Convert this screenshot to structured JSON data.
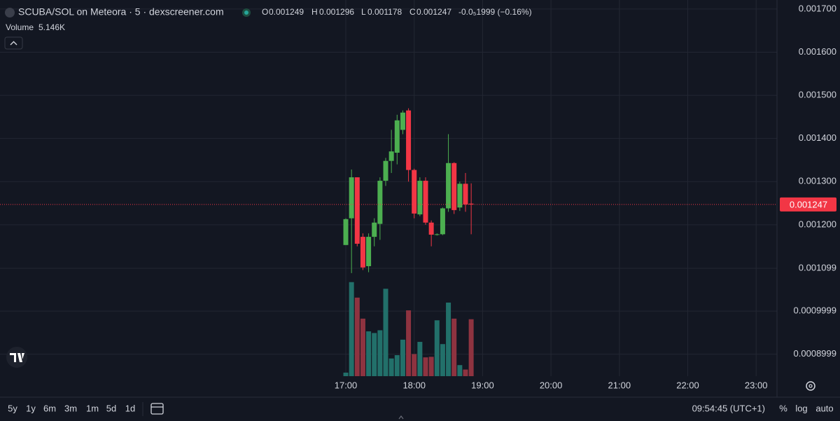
{
  "header": {
    "symbol": "SCUBA/SOL on Meteora · 5 · dexscreener.com",
    "o": "O",
    "h": "H",
    "l": "L",
    "c": "C",
    "change": "-0.0₅1999 (−0.16%)"
  },
  "chart_data": {
    "type": "candlestick",
    "x": [
      1020,
      1025,
      1030,
      1035,
      1040,
      1045,
      1050,
      1055,
      1060,
      1065,
      1070,
      1075,
      1080,
      1085,
      1090,
      1095,
      1100,
      1105,
      1110,
      1115,
      1120,
      1125,
      1130
    ],
    "open": [
      0.001153,
      0.001215,
      0.00131,
      0.001172,
      0.001104,
      0.001172,
      0.001202,
      0.001302,
      0.001348,
      0.001367,
      0.00142,
      0.001465,
      0.001327,
      0.001224,
      0.001302,
      0.001205,
      0.001177,
      0.001178,
      0.001238,
      0.001343,
      0.00124,
      0.001295,
      0.001249
    ],
    "high": [
      0.001215,
      0.001328,
      0.00131,
      0.00118,
      0.00118,
      0.001215,
      0.00131,
      0.001355,
      0.00142,
      0.001455,
      0.001465,
      0.00147,
      0.00133,
      0.00131,
      0.00131,
      0.00121,
      0.00118,
      0.00124,
      0.00141,
      0.001345,
      0.0013,
      0.00132,
      0.001296
    ],
    "low": [
      0.001153,
      0.001088,
      0.00115,
      0.001095,
      0.00109,
      0.00115,
      0.001165,
      0.00129,
      0.00132,
      0.00134,
      0.00141,
      0.0013,
      0.001215,
      0.00122,
      0.0012,
      0.00115,
      0.001175,
      0.001176,
      0.00123,
      0.001225,
      0.001232,
      0.00123,
      0.001178
    ],
    "close": [
      0.001213,
      0.00131,
      0.001156,
      0.001101,
      0.001172,
      0.001205,
      0.001302,
      0.001348,
      0.00137,
      0.001442,
      0.00146,
      0.001327,
      0.001226,
      0.001302,
      0.001205,
      0.001177,
      0.001178,
      0.001238,
      0.001343,
      0.001234,
      0.001295,
      0.001247,
      0.001247
    ],
    "volume": {
      "name": "Volume",
      "values": [
        320,
        8500,
        7100,
        5200,
        4050,
        3900,
        4150,
        7900,
        1600,
        1900,
        3300,
        5950,
        2000,
        3100,
        1700,
        1750,
        5050,
        2900,
        6650,
        5200,
        1000,
        600,
        5146
      ],
      "value_labels": [
        null,
        null,
        null,
        null,
        null,
        null,
        null,
        null,
        null,
        null,
        null,
        null,
        null,
        null,
        null,
        null,
        null,
        null,
        null,
        null,
        null,
        null,
        "5.146K"
      ]
    },
    "up_color": "#4caf50",
    "down_color": "#f23645",
    "volume_up_color": "#22706a",
    "volume_down_color": "#8e3340",
    "ylim": [
      0.000849,
      0.001721
    ],
    "yticks": [
      {
        "value": 0.0017,
        "label": "0.001700"
      },
      {
        "value": 0.0016,
        "label": "0.001600"
      },
      {
        "value": 0.0015,
        "label": "0.001500"
      },
      {
        "value": 0.0014,
        "label": "0.001400"
      },
      {
        "value": 0.0013,
        "label": "0.001300"
      },
      {
        "value": 0.0012,
        "label": "0.001200"
      },
      0.001099,
      0.0009999,
      0.0008999
    ],
    "xlim": [
      716.6,
      1398.3
    ],
    "xticks": [
      {
        "value": 1020,
        "label": "17:00"
      },
      {
        "value": 1080,
        "label": "18:00"
      },
      {
        "value": 1140,
        "label": "19:00"
      },
      {
        "value": 1200,
        "label": "20:00"
      },
      {
        "value": 1260,
        "label": "21:00"
      },
      {
        "value": 1320,
        "label": "22:00"
      },
      {
        "value": 1380,
        "label": "23:00"
      }
    ],
    "vlim": [
      0,
      34000
    ],
    "grid": true
  },
  "toolbar": {
    "ranges": [
      "5y",
      "1y",
      "6m",
      "3m",
      "1m",
      "5d",
      "1d"
    ],
    "clock": "09:54:45 (UTC+1)",
    "options": [
      "%",
      "log",
      "auto"
    ]
  }
}
